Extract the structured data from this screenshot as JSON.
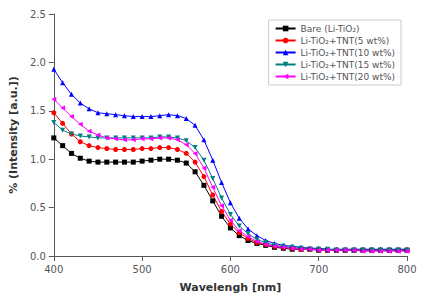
{
  "chart_data": {
    "type": "line",
    "xlabel": "Wavelengh [nm]",
    "ylabel": "% (Intensity [a.u.])",
    "xlim": [
      400,
      800
    ],
    "ylim": [
      0.0,
      2.5
    ],
    "xticks": [
      400,
      500,
      600,
      700,
      800
    ],
    "yticks": [
      {
        "value": 0.0,
        "label": "0.0"
      },
      0.5,
      {
        "value": 1.0,
        "label": "1.0"
      },
      1.5,
      {
        "value": 2.0,
        "label": "2.0"
      },
      2.5
    ],
    "grid": false,
    "legend": "upper right",
    "x": [
      400,
      410,
      420,
      430,
      440,
      450,
      460,
      470,
      480,
      490,
      500,
      510,
      520,
      530,
      540,
      550,
      560,
      570,
      580,
      590,
      600,
      610,
      620,
      630,
      640,
      650,
      660,
      670,
      680,
      690,
      700,
      710,
      720,
      730,
      740,
      750,
      760,
      770,
      780,
      790,
      800
    ],
    "series": [
      {
        "name": "Bare (Li-TiO₂)",
        "color": "#000000",
        "marker": "square",
        "values": [
          1.22,
          1.14,
          1.06,
          1.01,
          0.98,
          0.97,
          0.97,
          0.97,
          0.97,
          0.97,
          0.98,
          0.99,
          1.0,
          1.0,
          0.99,
          0.96,
          0.87,
          0.73,
          0.57,
          0.41,
          0.29,
          0.21,
          0.16,
          0.13,
          0.11,
          0.09,
          0.08,
          0.07,
          0.07,
          0.07,
          0.06,
          0.06,
          0.06,
          0.06,
          0.06,
          0.06,
          0.06,
          0.06,
          0.06,
          0.06,
          0.06
        ]
      },
      {
        "name": "Li-TiO₂+TNT(5 wt%)",
        "color": "#ff0000",
        "marker": "circle",
        "values": [
          1.48,
          1.37,
          1.26,
          1.18,
          1.14,
          1.12,
          1.11,
          1.1,
          1.1,
          1.1,
          1.11,
          1.11,
          1.12,
          1.12,
          1.1,
          1.06,
          0.97,
          0.82,
          0.63,
          0.46,
          0.33,
          0.24,
          0.18,
          0.14,
          0.12,
          0.1,
          0.09,
          0.08,
          0.07,
          0.07,
          0.07,
          0.06,
          0.06,
          0.06,
          0.06,
          0.06,
          0.06,
          0.06,
          0.06,
          0.06,
          0.06
        ]
      },
      {
        "name": "Li-TiO₂+TNT(10 wt%)",
        "color": "#0000ff",
        "marker": "triangle-up",
        "values": [
          1.93,
          1.79,
          1.67,
          1.58,
          1.52,
          1.48,
          1.47,
          1.46,
          1.45,
          1.44,
          1.44,
          1.44,
          1.45,
          1.46,
          1.45,
          1.42,
          1.35,
          1.2,
          0.99,
          0.76,
          0.55,
          0.39,
          0.28,
          0.21,
          0.16,
          0.13,
          0.11,
          0.1,
          0.09,
          0.08,
          0.08,
          0.07,
          0.07,
          0.07,
          0.07,
          0.07,
          0.07,
          0.07,
          0.07,
          0.07,
          0.07
        ]
      },
      {
        "name": "Li-TiO₂+TNT(15 wt%)",
        "color": "#008080",
        "marker": "triangle-down",
        "values": [
          1.38,
          1.3,
          1.26,
          1.24,
          1.23,
          1.22,
          1.22,
          1.22,
          1.22,
          1.22,
          1.22,
          1.22,
          1.23,
          1.23,
          1.22,
          1.19,
          1.12,
          0.99,
          0.8,
          0.6,
          0.43,
          0.31,
          0.23,
          0.17,
          0.14,
          0.11,
          0.1,
          0.09,
          0.08,
          0.07,
          0.07,
          0.07,
          0.06,
          0.06,
          0.06,
          0.06,
          0.06,
          0.06,
          0.06,
          0.06,
          0.06
        ]
      },
      {
        "name": "Li-TiO₂+TNT(20 wt%)",
        "color": "#ff00ff",
        "marker": "triangle-left",
        "values": [
          1.62,
          1.53,
          1.44,
          1.36,
          1.29,
          1.25,
          1.22,
          1.21,
          1.2,
          1.2,
          1.21,
          1.21,
          1.22,
          1.22,
          1.2,
          1.15,
          1.06,
          0.91,
          0.71,
          0.52,
          0.37,
          0.26,
          0.2,
          0.15,
          0.12,
          0.1,
          0.09,
          0.08,
          0.07,
          0.07,
          0.06,
          0.06,
          0.06,
          0.06,
          0.06,
          0.05,
          0.05,
          0.05,
          0.05,
          0.05,
          0.05
        ]
      }
    ]
  }
}
